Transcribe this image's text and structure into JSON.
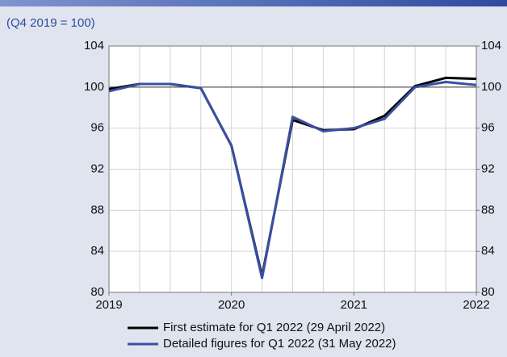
{
  "chart_data": {
    "type": "line",
    "subtitle": "(Q4 2019 = 100)",
    "x": [
      2019,
      2019.25,
      2019.5,
      2019.75,
      2020,
      2020.25,
      2020.5,
      2020.75,
      2021,
      2021.25,
      2021.5,
      2021.75,
      2022
    ],
    "series": [
      {
        "name": "First estimate for Q1 2022 (29 April 2022)",
        "color": "#000000",
        "values": [
          99.8,
          100.3,
          100.3,
          99.9,
          94.3,
          81.6,
          96.8,
          95.8,
          95.9,
          97.2,
          100.1,
          100.9,
          100.8
        ]
      },
      {
        "name": "Detailed figures for Q1 2022 (31 May 2022)",
        "color": "#3a4fa3",
        "values": [
          99.6,
          100.3,
          100.3,
          99.9,
          94.3,
          81.4,
          97.1,
          95.7,
          96.0,
          96.9,
          100.0,
          100.5,
          100.2
        ]
      }
    ],
    "xlim": [
      2019,
      2022
    ],
    "xticks": [
      2019,
      2020,
      2021,
      2022
    ],
    "ylim": [
      80,
      104
    ],
    "yticks": [
      80,
      84,
      88,
      92,
      96,
      100,
      104
    ],
    "y2lim": [
      80,
      104
    ],
    "y2ticks": [
      80,
      84,
      88,
      92,
      96,
      100,
      104
    ],
    "reference_line": 100,
    "grid": true,
    "legend": "bottom"
  }
}
